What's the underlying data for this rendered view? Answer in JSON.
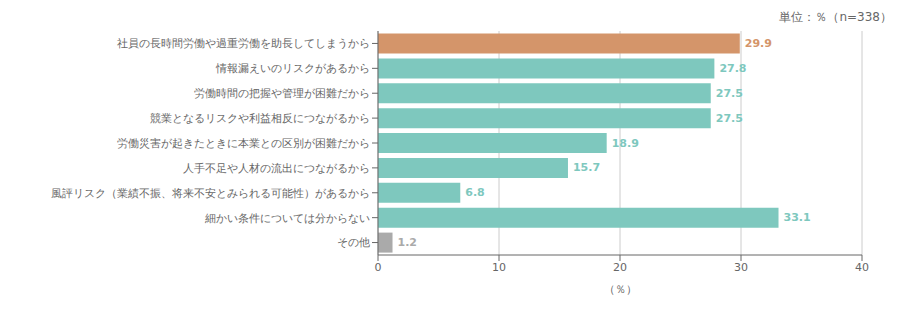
{
  "chart_data": {
    "type": "bar",
    "orientation": "horizontal",
    "title": "単位：％（n=338）",
    "xlabel": "（％）",
    "categories": [
      "社員の長時間労働や過重労働を助長してしまうから",
      "情報漏えいのリスクがあるから",
      "労働時間の把握や管理が困難だから",
      "競業となるリスクや利益相反につながるから",
      "労働災害が起きたときに本業との区別が困難だから",
      "人手不足や人材の流出につながるから",
      "風評リスク（業績不振、将来不安とみられる可能性）があるから",
      "細かい条件については分からない",
      "その他"
    ],
    "values": [
      29.9,
      27.8,
      27.5,
      27.5,
      18.9,
      15.7,
      6.8,
      33.1,
      1.2
    ],
    "colors": [
      "#d4956a",
      "#7ec8be",
      "#7ec8be",
      "#7ec8be",
      "#7ec8be",
      "#7ec8be",
      "#7ec8be",
      "#7ec8be",
      "#aaaaaa"
    ],
    "xlim": [
      0,
      40
    ],
    "xticks": [
      0,
      10,
      20,
      30,
      40
    ],
    "grid": true,
    "data_labels": true
  }
}
